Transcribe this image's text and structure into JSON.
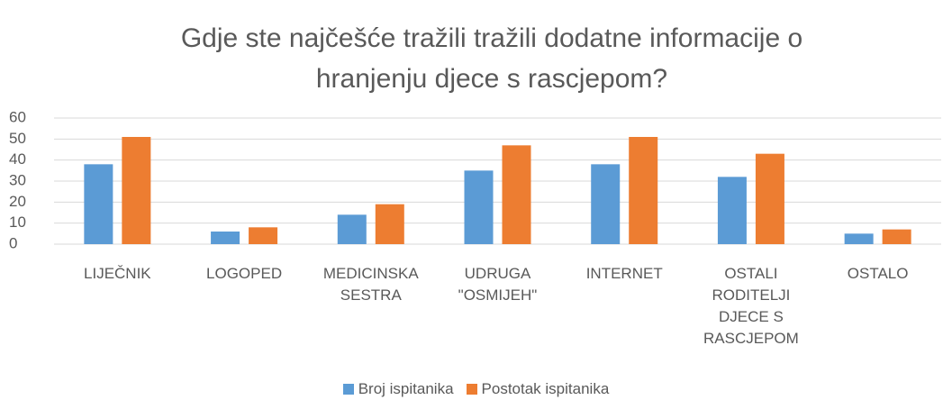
{
  "chart_data": {
    "type": "bar",
    "title": "Gdje ste najčešće tražili tražili dodatne informacije o hranjenju djece s rascjepom?",
    "categories": [
      "LIJEČNIK",
      "LOGOPED",
      "MEDICINSKA SESTRA",
      "UDRUGA \"OSMIJEH\"",
      "INTERNET",
      "OSTALI RODITELJI DJECE S RASCJEPOM",
      "OSTALO"
    ],
    "series": [
      {
        "name": "Broj ispitanika",
        "color": "#5b9bd5",
        "values": [
          38,
          6,
          14,
          35,
          38,
          32,
          5
        ]
      },
      {
        "name": "Postotak ispitanika",
        "color": "#ed7d31",
        "values": [
          51,
          8,
          19,
          47,
          51,
          43,
          7
        ]
      }
    ],
    "ylim": [
      0,
      60
    ],
    "yticks": [
      0,
      10,
      20,
      30,
      40,
      50,
      60
    ],
    "grid": true,
    "legend": "bottom"
  }
}
